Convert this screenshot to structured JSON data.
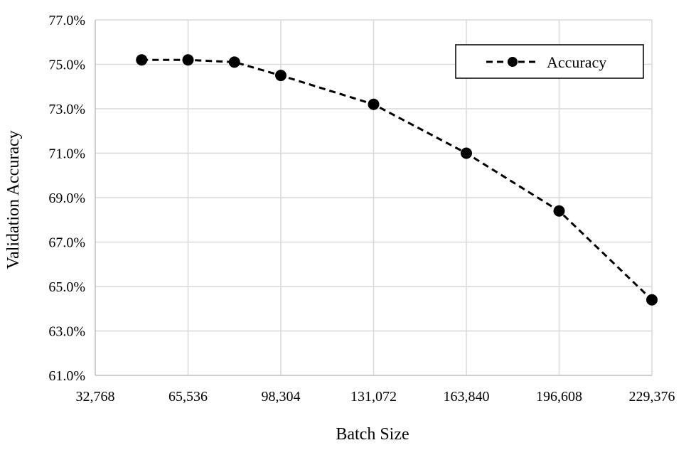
{
  "chart_data": {
    "type": "line",
    "title": "",
    "xlabel": "Batch Size",
    "ylabel": "Validation Accuracy",
    "xlim": [
      32768,
      229376
    ],
    "ylim": [
      61.0,
      77.0
    ],
    "x_ticks": [
      32768,
      65536,
      98304,
      131072,
      163840,
      196608,
      229376
    ],
    "x_tick_labels": [
      "32,768",
      "65,536",
      "98,304",
      "131,072",
      "163,840",
      "196,608",
      "229,376"
    ],
    "y_ticks": [
      61,
      63,
      65,
      67,
      69,
      71,
      73,
      75,
      77
    ],
    "y_tick_labels": [
      "61.0%",
      "63.0%",
      "65.0%",
      "67.0%",
      "69.0%",
      "71.0%",
      "73.0%",
      "75.0%",
      "77.0%"
    ],
    "grid": true,
    "legend_position": "top-right",
    "series": [
      {
        "name": "Accuracy",
        "style": "dashed-black-with-circle-markers",
        "color": "#000000",
        "x": [
          49152,
          65536,
          81920,
          98304,
          131072,
          163840,
          196608,
          229376
        ],
        "y": [
          75.2,
          75.2,
          75.1,
          74.5,
          73.2,
          71.0,
          68.4,
          64.4
        ]
      }
    ]
  }
}
